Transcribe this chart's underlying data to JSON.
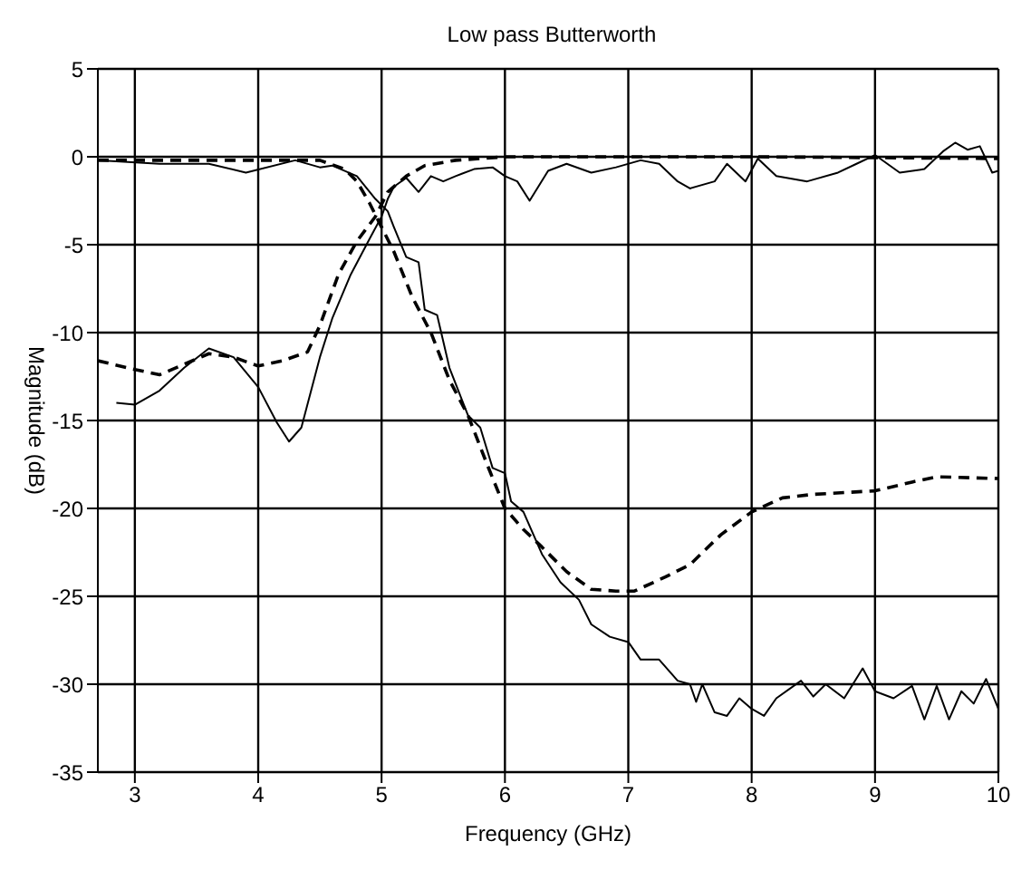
{
  "chart_data": {
    "type": "line",
    "title": "Low pass Butterworth",
    "xlabel": "Frequency (GHz)",
    "ylabel": "Magnitude (dB)",
    "xlim": [
      2.7,
      10
    ],
    "xticks": [
      3,
      4,
      5,
      6,
      7,
      8,
      9,
      10
    ],
    "ylim": [
      -35,
      5
    ],
    "yticks": [
      -35,
      -30,
      -25,
      -20,
      -15,
      -10,
      -5,
      0,
      5
    ],
    "grid": true,
    "legend": false,
    "marker": "none",
    "series": [
      {
        "color": "#000000",
        "line_style": "solid",
        "x": [
          2.72,
          3.2,
          3.6,
          3.9,
          4.3,
          4.5,
          4.6,
          4.8,
          4.95,
          5.05,
          5.1,
          5.2,
          5.3,
          5.35,
          5.45,
          5.55,
          5.7,
          5.8,
          5.9,
          6.0,
          6.05,
          6.15,
          6.3,
          6.45,
          6.6,
          6.7,
          6.85,
          7.0,
          7.1,
          7.25,
          7.4,
          7.5,
          7.55,
          7.6,
          7.7,
          7.8,
          7.9,
          8.0,
          8.1,
          8.2,
          8.4,
          8.5,
          8.6,
          8.75,
          8.9,
          9.0,
          9.15,
          9.3,
          9.4,
          9.5,
          9.6,
          9.7,
          9.8,
          9.9,
          10
        ],
        "values": [
          -0.2,
          -0.4,
          -0.4,
          -0.9,
          -0.2,
          -0.6,
          -0.5,
          -1.1,
          -2.4,
          -3.1,
          -4,
          -5.7,
          -6,
          -8.7,
          -9,
          -12,
          -14.7,
          -15.4,
          -17.7,
          -18,
          -19.6,
          -20.2,
          -22.6,
          -24.2,
          -25.2,
          -26.6,
          -27.3,
          -27.6,
          -28.6,
          -28.6,
          -29.8,
          -30,
          -31,
          -30,
          -31.6,
          -31.8,
          -30.8,
          -31.4,
          -31.8,
          -30.8,
          -29.8,
          -30.7,
          -30,
          -30.8,
          -29.1,
          -30.4,
          -30.8,
          -30.1,
          -32,
          -30.1,
          -32,
          -30.4,
          -31.1,
          -29.7,
          -31.4
        ]
      },
      {
        "color": "#000000",
        "line_style": "dashed",
        "x": [
          2.7,
          3.5,
          4.5,
          4.7,
          4.8,
          4.9,
          5.0,
          5.1,
          5.25,
          5.4,
          5.55,
          5.7,
          5.85,
          6.0,
          6.15,
          6.3,
          6.5,
          6.7,
          6.9,
          7.05,
          7.3,
          7.5,
          7.75,
          8.0,
          8.25,
          8.5,
          9.0,
          9.3,
          9.5,
          10
        ],
        "values": [
          -0.2,
          -0.2,
          -0.2,
          -0.7,
          -1.4,
          -2.6,
          -4,
          -5.4,
          -8,
          -10,
          -12.7,
          -14.7,
          -17.4,
          -20,
          -21.2,
          -22.2,
          -23.6,
          -24.6,
          -24.7,
          -24.7,
          -23.9,
          -23.2,
          -21.5,
          -20.2,
          -19.4,
          -19.2,
          -19,
          -18.5,
          -18.2,
          -18.3
        ]
      },
      {
        "color": "#000000",
        "line_style": "dashed",
        "x": [
          2.7,
          3.0,
          3.2,
          3.4,
          3.6,
          3.8,
          4.0,
          4.2,
          4.4,
          4.5,
          4.65,
          4.8,
          4.95,
          5.05,
          5.2,
          5.35,
          5.6,
          6.0,
          8.0,
          10
        ],
        "values": [
          -11.6,
          -12.1,
          -12.4,
          -11.8,
          -11.2,
          -11.4,
          -11.9,
          -11.6,
          -11.1,
          -9.6,
          -6.7,
          -4.8,
          -3.4,
          -2,
          -1.1,
          -0.5,
          -0.2,
          0,
          0,
          -0.1
        ]
      },
      {
        "color": "#000000",
        "line_style": "solid",
        "x": [
          2.85,
          3.0,
          3.2,
          3.4,
          3.6,
          3.8,
          4.0,
          4.15,
          4.25,
          4.35,
          4.5,
          4.6,
          4.75,
          4.9,
          5.0,
          5.05,
          5.1,
          5.2,
          5.3,
          5.4,
          5.5,
          5.6,
          5.75,
          5.9,
          6.0,
          6.1,
          6.2,
          6.35,
          6.5,
          6.7,
          6.9,
          7.1,
          7.25,
          7.4,
          7.5,
          7.7,
          7.8,
          7.95,
          8.05,
          8.2,
          8.45,
          8.7,
          8.85,
          9.0,
          9.2,
          9.4,
          9.55,
          9.65,
          9.75,
          9.85,
          9.95,
          10
        ],
        "values": [
          -14,
          -14.1,
          -13.3,
          -12,
          -10.9,
          -11.4,
          -13.1,
          -15.1,
          -16.2,
          -15.4,
          -11.4,
          -9.2,
          -6.7,
          -4.7,
          -3.4,
          -2.4,
          -1.7,
          -1.2,
          -2,
          -1.1,
          -1.4,
          -1.1,
          -0.7,
          -0.6,
          -1.1,
          -1.4,
          -2.5,
          -0.8,
          -0.4,
          -0.9,
          -0.6,
          -0.2,
          -0.4,
          -1.4,
          -1.8,
          -1.4,
          -0.4,
          -1.4,
          -0.1,
          -1.1,
          -1.4,
          -0.9,
          -0.4,
          0.1,
          -0.9,
          -0.7,
          0.3,
          0.8,
          0.4,
          0.6,
          -0.9,
          -0.8
        ]
      }
    ]
  }
}
